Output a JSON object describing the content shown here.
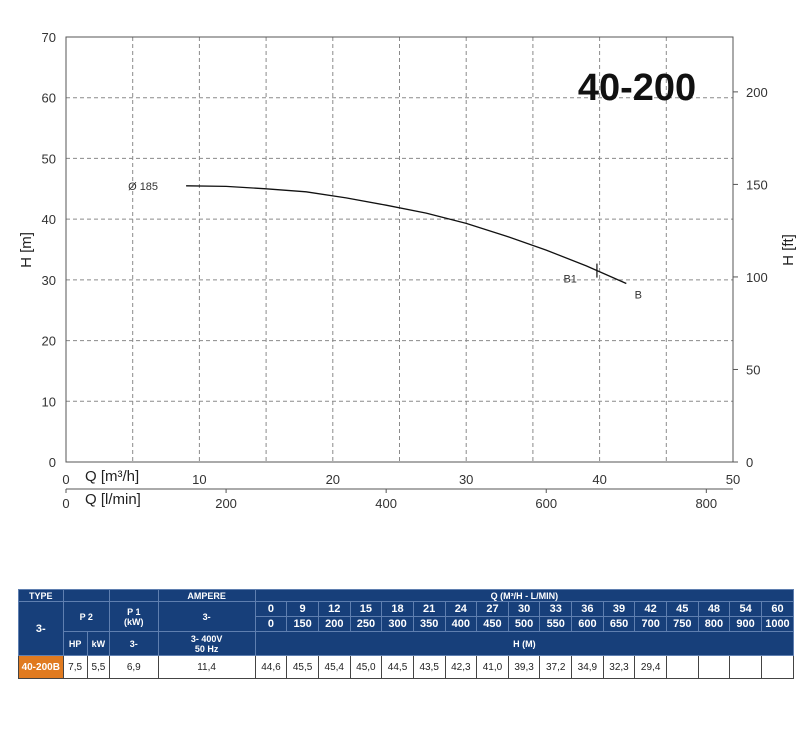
{
  "chart_data": {
    "type": "line",
    "title": "40-200",
    "ylabel_left": "H [m]",
    "ylabel_right": "H [ft]",
    "xlabel_primary": "Q [m³/h]",
    "xlabel_secondary": "Q [l/min]",
    "xlim": [
      0,
      50
    ],
    "ylim": [
      0,
      70
    ],
    "x_ticks": [
      "0",
      "10",
      "20",
      "30",
      "40",
      "50"
    ],
    "y_ticks": [
      "0",
      "10",
      "20",
      "30",
      "40",
      "50",
      "60",
      "70"
    ],
    "ft_ticks": [
      "0",
      "50",
      "100",
      "150",
      "200"
    ],
    "lmin_ticks": [
      "0",
      "200",
      "400",
      "600",
      "800"
    ],
    "grid": true,
    "series": [
      {
        "name": "Ø 185",
        "x": [
          9,
          12,
          15,
          18,
          21,
          24,
          27,
          30,
          33,
          36,
          39,
          42
        ],
        "y": [
          45.5,
          45.4,
          45.0,
          44.5,
          43.5,
          42.3,
          41.0,
          39.3,
          37.2,
          34.9,
          32.3,
          29.4
        ]
      }
    ],
    "annotations": [
      "B1",
      "B"
    ],
    "b1_marker_x": 39.8
  },
  "table": {
    "type_header": "TYPE",
    "p2_header": "P 2",
    "p1_header": "P 1",
    "p1_unit": "(kW)",
    "ampere_header": "AMPERE",
    "phase": "3-",
    "phase_left": "3-",
    "ampere_phase": "3-",
    "voltage": "3- 400V",
    "freq": "50 Hz",
    "q_header": "Q (M³/H - L/MIN)",
    "h_header": "H (M)",
    "hp_label": "HP",
    "kw_label": "kW",
    "p1_phase": "3-",
    "q_m3h": [
      "0",
      "9",
      "12",
      "15",
      "18",
      "21",
      "24",
      "27",
      "30",
      "33",
      "36",
      "39",
      "42",
      "45",
      "48",
      "54",
      "60"
    ],
    "q_lmin": [
      "0",
      "150",
      "200",
      "250",
      "300",
      "350",
      "400",
      "450",
      "500",
      "550",
      "600",
      "650",
      "700",
      "750",
      "800",
      "900",
      "1000"
    ],
    "row": {
      "type": "40-200B",
      "hp": "7,5",
      "kw": "5,5",
      "p1": "6,9",
      "ampere": "11,4",
      "h_values": [
        "44,6",
        "45,5",
        "45,4",
        "45,0",
        "44,5",
        "43,5",
        "42,3",
        "41,0",
        "39,3",
        "37,2",
        "34,9",
        "32,3",
        "29,4",
        "",
        "",
        "",
        ""
      ]
    }
  }
}
